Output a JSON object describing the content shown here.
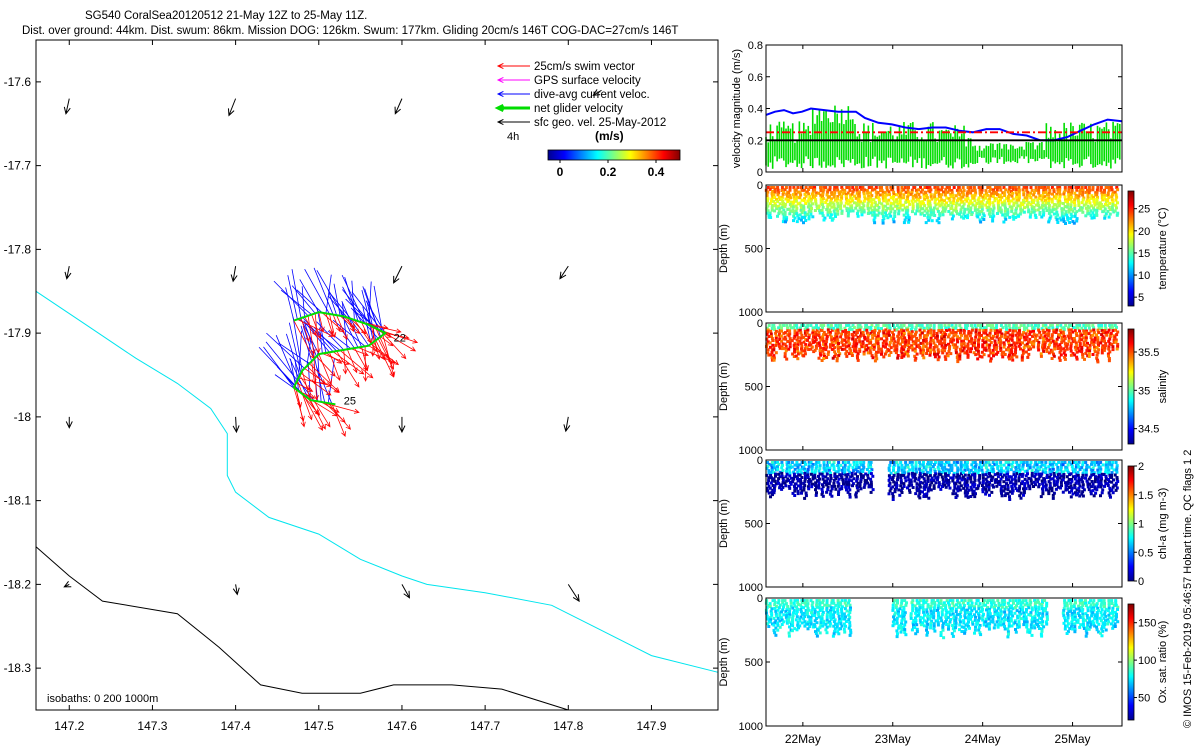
{
  "header": {
    "line1": "SG540 CoralSea20120512 21-May 12Z to 25-May 11Z.",
    "line2": "Dist. over ground: 44km. Dist. swum: 86km. Mission DOG: 126km. Swum: 177km. Gliding 20cm/s 146T COG-DAC=27cm/s 146T"
  },
  "chart_data": [
    {
      "type": "scatter",
      "subtype": "map-quiver",
      "xlim": [
        147.16,
        147.98
      ],
      "ylim": [
        -18.35,
        -17.55
      ],
      "x_ticks": [
        "147.2",
        "147.3",
        "147.4",
        "147.5",
        "147.6",
        "147.7",
        "147.8",
        "147.9"
      ],
      "y_ticks": [
        "-17.6",
        "-17.7",
        "-17.8",
        "-17.9",
        "-18",
        "-18.1",
        "-18.2",
        "-18.3"
      ],
      "legend": {
        "placement": "top-right",
        "entries": [
          {
            "label": "25cm/s swim vector",
            "color": "#ff0000"
          },
          {
            "label": "GPS surface velocity",
            "color": "#ff00ff"
          },
          {
            "label": "dive-avg current veloc.",
            "color": "#0000ff"
          },
          {
            "label": "net glider velocity",
            "color": "#00dd00"
          },
          {
            "label": "sfc geo. vel. 25-May-2012",
            "color": "#000000"
          }
        ]
      },
      "interval_label": "4h",
      "colorbar": {
        "title": "(m/s)",
        "ticks": [
          "0",
          "0.2",
          "0.4"
        ],
        "range": [
          -0.05,
          0.5
        ]
      },
      "day_labels": [
        {
          "text": "22",
          "x": 147.59,
          "y": -17.91
        },
        {
          "text": "25",
          "x": 147.53,
          "y": -17.985
        }
      ],
      "isobath_label": "isobaths: 0   200  1000m",
      "isobaths": [
        {
          "depth": "0",
          "color": "#00e5ee",
          "points": [
            [
              147.16,
              -17.85
            ],
            [
              147.22,
              -17.89
            ],
            [
              147.28,
              -17.93
            ],
            [
              147.33,
              -17.96
            ],
            [
              147.37,
              -17.99
            ],
            [
              147.39,
              -18.02
            ],
            [
              147.39,
              -18.07
            ],
            [
              147.4,
              -18.09
            ],
            [
              147.44,
              -18.12
            ],
            [
              147.5,
              -18.14
            ],
            [
              147.55,
              -18.17
            ],
            [
              147.6,
              -18.19
            ],
            [
              147.63,
              -18.2
            ],
            [
              147.7,
              -18.21
            ],
            [
              147.78,
              -18.225
            ],
            [
              147.83,
              -18.25
            ],
            [
              147.9,
              -18.285
            ],
            [
              147.98,
              -18.305
            ]
          ]
        },
        {
          "depth": "200",
          "color": "#000000",
          "points": [
            [
              147.16,
              -18.155
            ],
            [
              147.2,
              -18.19
            ],
            [
              147.24,
              -18.22
            ],
            [
              147.33,
              -18.235
            ],
            [
              147.38,
              -18.275
            ],
            [
              147.43,
              -18.32
            ],
            [
              147.48,
              -18.33
            ],
            [
              147.55,
              -18.33
            ],
            [
              147.59,
              -18.32
            ],
            [
              147.66,
              -18.32
            ],
            [
              147.72,
              -18.325
            ],
            [
              147.8,
              -18.35
            ]
          ]
        }
      ],
      "geo_arrows": [
        [
          147.2,
          -17.62,
          -0.004,
          -0.018
        ],
        [
          147.4,
          -17.62,
          -0.008,
          -0.02
        ],
        [
          147.6,
          -17.62,
          -0.008,
          -0.018
        ],
        [
          147.84,
          -17.61,
          -0.01,
          -0.006
        ],
        [
          147.2,
          -17.82,
          -0.003,
          -0.015
        ],
        [
          147.4,
          -17.82,
          -0.003,
          -0.018
        ],
        [
          147.6,
          -17.82,
          -0.01,
          -0.02
        ],
        [
          147.8,
          -17.82,
          -0.01,
          -0.015
        ],
        [
          147.2,
          -18.0,
          0.0,
          -0.013
        ],
        [
          147.4,
          -18.0,
          0.001,
          -0.018
        ],
        [
          147.6,
          -18.0,
          0.0,
          -0.018
        ],
        [
          147.8,
          -18.0,
          -0.003,
          -0.017
        ],
        [
          147.2,
          -18.2,
          -0.006,
          -0.003
        ],
        [
          147.4,
          -18.2,
          0.002,
          -0.012
        ],
        [
          147.6,
          -18.2,
          0.009,
          -0.016
        ],
        [
          147.8,
          -18.2,
          0.013,
          -0.02
        ]
      ]
    },
    {
      "type": "line",
      "ylabel": "velocity magnitude (m/s)",
      "ylim": [
        0,
        0.8
      ],
      "y_ticks": [
        "0",
        "0.2",
        "0.4",
        "0.6",
        "0.8"
      ],
      "x_ticks": [
        "22May",
        "23May",
        "24May",
        "25May"
      ],
      "series": [
        {
          "color": "#0000ff",
          "x": [
            0.0,
            0.1,
            0.2,
            0.3,
            0.4,
            0.5,
            0.65,
            0.8,
            1.0,
            1.1,
            1.25,
            1.4,
            1.55,
            1.7,
            1.85,
            2.0,
            2.15,
            2.3,
            2.45,
            2.6,
            2.75,
            2.9,
            3.05,
            3.2,
            3.35,
            3.5,
            3.65,
            3.8,
            3.96
          ],
          "values": [
            0.36,
            0.38,
            0.39,
            0.37,
            0.38,
            0.4,
            0.39,
            0.38,
            0.38,
            0.34,
            0.31,
            0.3,
            0.28,
            0.27,
            0.28,
            0.28,
            0.26,
            0.25,
            0.27,
            0.27,
            0.24,
            0.23,
            0.2,
            0.2,
            0.22,
            0.26,
            0.3,
            0.33,
            0.32
          ]
        },
        {
          "color": "#ff0000",
          "dashed": true,
          "x": [
            0,
            3.96
          ],
          "values": [
            0.25,
            0.25
          ]
        },
        {
          "color": "#000000",
          "x": [
            0,
            3.96
          ],
          "values": [
            0.2,
            0.2
          ]
        }
      ]
    },
    {
      "type": "scatter",
      "ylabel": "Depth (m)",
      "ylim": [
        0,
        1000
      ],
      "y_ticks": [
        "0",
        "500",
        "1000"
      ],
      "colorbar": {
        "label": "temperature (°C)",
        "ticks": [
          "5",
          "10",
          "15",
          "20",
          "25"
        ],
        "range": [
          3,
          29
        ]
      },
      "depth_range": [
        20,
        300
      ]
    },
    {
      "type": "scatter",
      "ylabel": "Depth (m)",
      "ylim": [
        0,
        1000
      ],
      "y_ticks": [
        "0",
        "500",
        "1000"
      ],
      "colorbar": {
        "label": "salinity",
        "ticks": [
          "34.5",
          "35",
          "35.5"
        ],
        "range": [
          34.3,
          35.8
        ]
      },
      "depth_range": [
        20,
        300
      ]
    },
    {
      "type": "scatter",
      "ylabel": "Depth (m)",
      "ylim": [
        0,
        1000
      ],
      "y_ticks": [
        "0",
        "500",
        "1000"
      ],
      "colorbar": {
        "label": "chl-a (mg m-3)",
        "ticks": [
          "0",
          "0.5",
          "1",
          "1.5",
          "2"
        ],
        "range": [
          0,
          2
        ]
      },
      "depth_range": [
        20,
        300
      ]
    },
    {
      "type": "scatter",
      "ylabel": "Depth (m)",
      "ylim": [
        0,
        1000
      ],
      "y_ticks": [
        "0",
        "500",
        "1000"
      ],
      "colorbar": {
        "label": "Ox. sat. ratio (%)",
        "ticks": [
          "50",
          "100",
          "150"
        ],
        "range": [
          20,
          175
        ]
      },
      "depth_range": [
        20,
        300
      ]
    }
  ],
  "side_note": "© IMOS 15-Feb-2019 05:46:57 Hobart time. QC flags 1  2",
  "colors": {
    "cyan": "#00e5ee",
    "red": "#ff0000",
    "blue": "#0000ff",
    "green": "#00dd00",
    "magenta": "#ff00ff"
  }
}
